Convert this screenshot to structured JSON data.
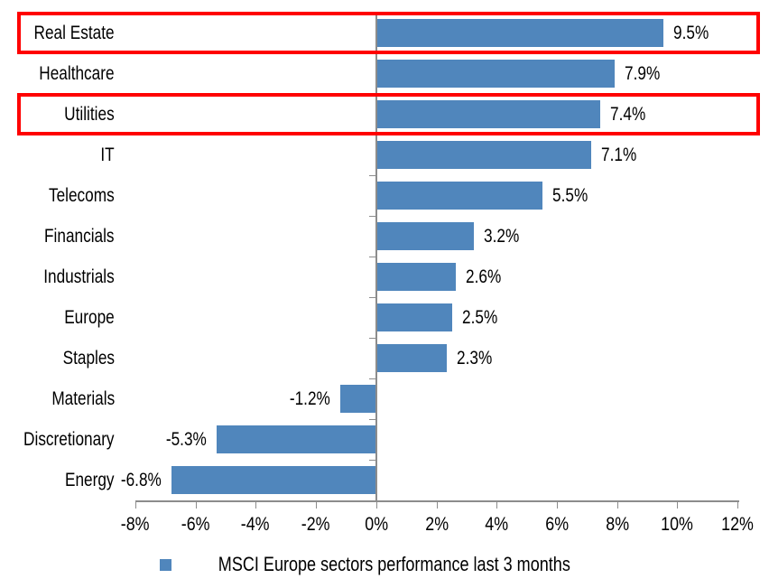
{
  "chart_data": {
    "type": "bar",
    "orientation": "horizontal",
    "title": "",
    "legend": "MSCI Europe sectors performance last 3 months",
    "legend_position": "bottom",
    "grid": false,
    "categories": [
      "Real Estate",
      "Healthcare",
      "Utilities",
      "IT",
      "Telecoms",
      "Financials",
      "Industrials",
      "Europe",
      "Staples",
      "Materials",
      "Discretionary",
      "Energy"
    ],
    "values": [
      9.5,
      7.9,
      7.4,
      7.1,
      5.5,
      3.2,
      2.6,
      2.5,
      2.3,
      -1.2,
      -5.3,
      -6.8
    ],
    "data_labels": [
      "9.5%",
      "7.9%",
      "7.4%",
      "7.1%",
      "5.5%",
      "3.2%",
      "2.6%",
      "2.5%",
      "2.3%",
      "-1.2%",
      "-5.3%",
      "-6.8%"
    ],
    "highlighted_categories": [
      "Real Estate",
      "Utilities"
    ],
    "x_axis": {
      "min": -8,
      "max": 12,
      "tick_step": 2,
      "tick_values": [
        -8,
        -6,
        -4,
        -2,
        0,
        2,
        4,
        6,
        8,
        10,
        12
      ],
      "tick_labels": [
        "-8%",
        "-6%",
        "-4%",
        "-2%",
        "0%",
        "2%",
        "4%",
        "6%",
        "8%",
        "10%",
        "12%"
      ]
    },
    "colors": {
      "bar": "#5086BC",
      "highlight_box": "#FF0000",
      "axis": "#8C8C8C",
      "text": "#000000"
    }
  }
}
